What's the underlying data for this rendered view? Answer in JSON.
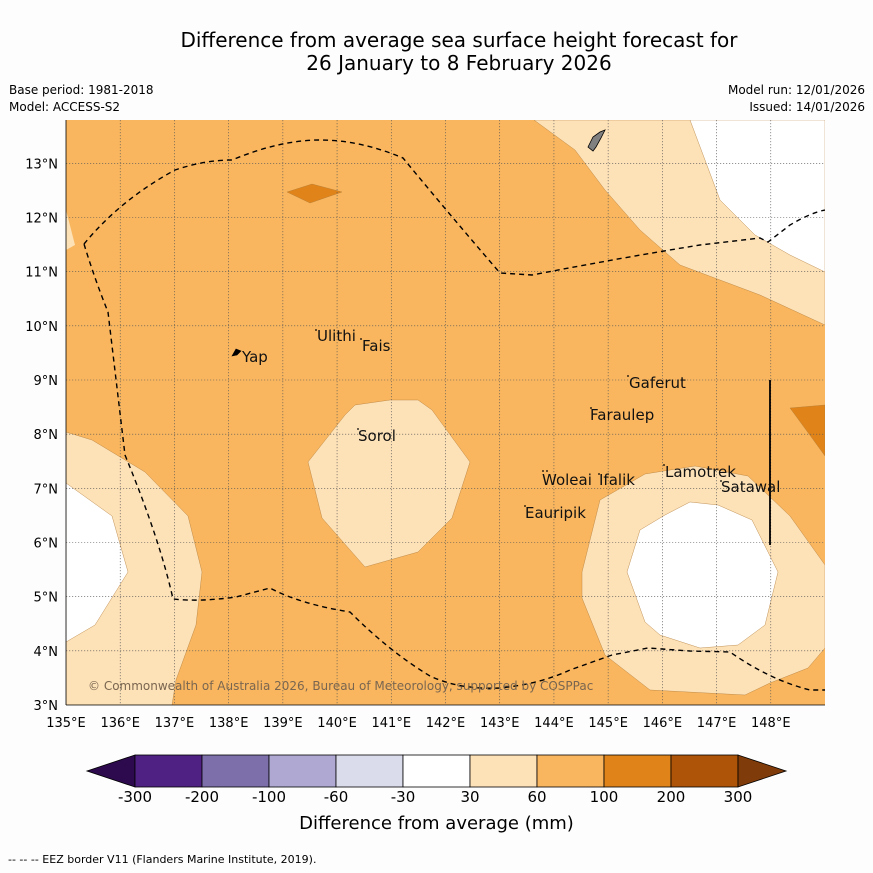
{
  "header": {
    "title_line1": "Difference from average sea surface height forecast for",
    "title_line2": "26 January to 8 February 2026",
    "base_period": "Base period: 1981-2018",
    "model": "Model: ACCESS-S2",
    "model_run": "Model run: 12/01/2026",
    "issued": "Issued: 14/01/2026"
  },
  "map": {
    "lat_labels": [
      "3°N",
      "4°N",
      "5°N",
      "6°N",
      "7°N",
      "8°N",
      "9°N",
      "10°N",
      "11°N",
      "12°N",
      "13°N"
    ],
    "lon_labels": [
      "135°E",
      "136°E",
      "137°E",
      "138°E",
      "139°E",
      "140°E",
      "141°E",
      "142°E",
      "143°E",
      "144°E",
      "145°E",
      "146°E",
      "147°E",
      "148°E"
    ],
    "places": [
      "Yap",
      "Ulithi",
      "Fais",
      "Sorol",
      "Gaferut",
      "Faraulep",
      "Woleai",
      "Ifalik",
      "Lamotrek",
      "Satawal",
      "Eauripik"
    ],
    "copyright": "© Commonwealth of Australia 2026, Bureau of Meteorology, supported by COSPPac"
  },
  "colorbar": {
    "title": "Difference from average (mm)",
    "ticks": [
      "-300",
      "-200",
      "-100",
      "-60",
      "-30",
      "30",
      "60",
      "100",
      "200",
      "300"
    ],
    "colors": [
      "#2d0a4e",
      "#4f2182",
      "#7d70aa",
      "#aea8d2",
      "#dadbeb",
      "#ffffff",
      "#fde1b7",
      "#f9b65f",
      "#e08419",
      "#ad5409",
      "#7f3b09"
    ]
  },
  "footer": "--  --  -- EEZ border V11 (Flanders Marine Institute, 2019)."
}
